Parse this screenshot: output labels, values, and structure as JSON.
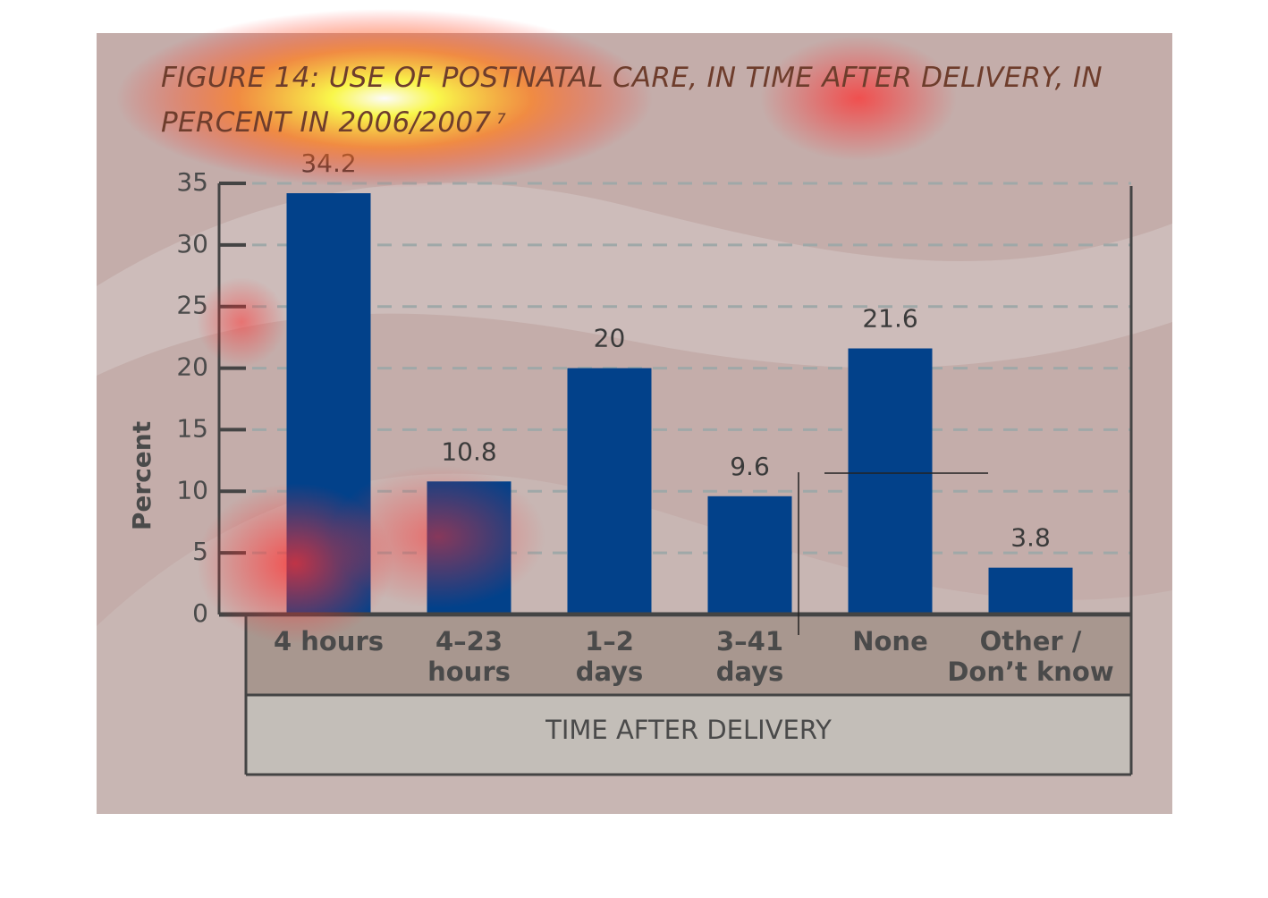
{
  "chart_data": {
    "type": "bar",
    "title": "FIGURE 14: USE OF POSTNATAL CARE, IN TIME AFTER DELIVERY, IN PERCENT IN 2006/2007",
    "title_note": "7",
    "ylabel": "Percent",
    "xlabel": "TIME AFTER DELIVERY",
    "categories": [
      "4 hours",
      "4–23\nhours",
      "1–2\ndays",
      "3–41\ndays",
      "None",
      "Other /\nDon’t know"
    ],
    "values": [
      34.2,
      10.8,
      20,
      9.6,
      21.6,
      3.8
    ],
    "color": "#02418a",
    "ylim": [
      0,
      35
    ],
    "yticks": [
      0,
      5,
      10,
      15,
      20,
      25,
      30,
      35
    ],
    "grid": true
  }
}
